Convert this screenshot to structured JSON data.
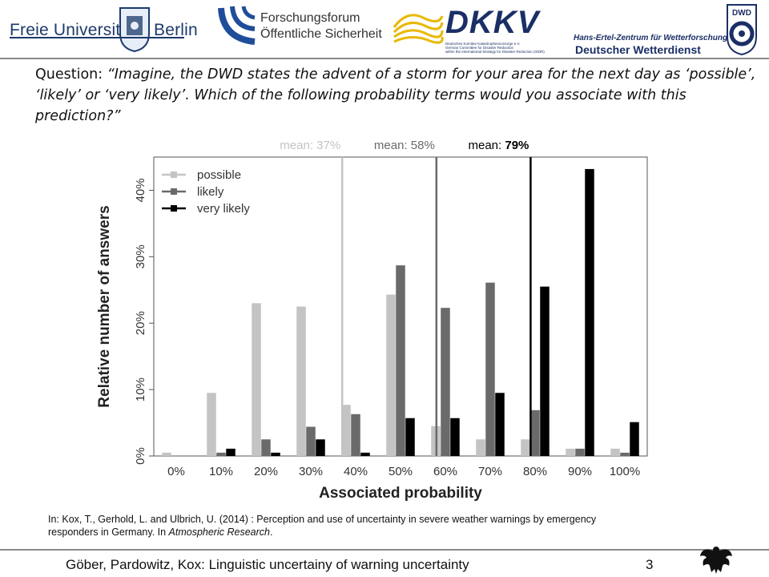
{
  "header": {
    "fu_left": "Freie Universität",
    "fu_right": "Berlin",
    "forschungsforum_line1": "Forschungsforum",
    "forschungsforum_line2": "Öffentliche Sicherheit",
    "dkkv_title": "DKKV",
    "dkkv_line1": "Deutsches Komitee Katastrophenvorsorge e.V.",
    "dkkv_line2": "German Committee for Disaster Reduction",
    "dkkv_line3": "within the International Strategy for Disaster Reduction (ISDR)",
    "dwd_badge": "DWD",
    "dwd_subtitle": "Hans-Ertel-Zentrum für Wetterforschung",
    "dwd_title": "Deutscher Wetterdienst"
  },
  "question": {
    "prefix": "Question: ",
    "text": "“Imagine, the DWD states the advent of a storm for your area for the next day as ‘possible’, ‘likely’ or ‘very likely’. Which of the following probability terms would you associate with this prediction?”"
  },
  "chart_data": {
    "type": "bar",
    "categories": [
      "0%",
      "10%",
      "20%",
      "30%",
      "40%",
      "50%",
      "60%",
      "70%",
      "80%",
      "90%",
      "100%"
    ],
    "series": [
      {
        "name": "possible",
        "color": "#c4c4c4",
        "values": [
          0.5,
          9.5,
          23.0,
          22.5,
          7.7,
          24.3,
          4.5,
          2.5,
          2.5,
          1.1,
          1.1
        ]
      },
      {
        "name": "likely",
        "color": "#6a6a6a",
        "values": [
          0.0,
          0.5,
          2.5,
          4.4,
          6.3,
          28.7,
          22.3,
          26.1,
          6.9,
          1.1,
          0.5
        ]
      },
      {
        "name": "very likely",
        "color": "#000000",
        "values": [
          0.0,
          1.1,
          0.5,
          2.5,
          0.5,
          5.7,
          5.7,
          9.5,
          25.5,
          43.2,
          5.1
        ]
      }
    ],
    "means": [
      {
        "label": "mean:",
        "value_label": "37%",
        "value": 37,
        "color": "#c4c4c4"
      },
      {
        "label": "mean:",
        "value_label": "58%",
        "value": 58,
        "color": "#6a6a6a"
      },
      {
        "label": "mean:",
        "value_label": "79%",
        "value": 79,
        "color": "#000000"
      }
    ],
    "xlabel": "Associated probability",
    "ylabel": "Relative number of answers",
    "ylim": [
      0,
      45
    ],
    "yticks": [
      0,
      10,
      20,
      30,
      40
    ],
    "ytick_labels": [
      "0%",
      "10%",
      "20%",
      "30%",
      "40%"
    ],
    "legend_position": "top-left"
  },
  "citation": {
    "line1": "In: Kox, T., Gerhold, L. and Ulbrich, U. (2014) : Perception and use of uncertainty in severe weather warnings by emergency",
    "line2_prefix": "responders in Germany.  In ",
    "journal": "Atmospheric Research",
    "line2_suffix": "."
  },
  "footer": {
    "text": "Göber, Pardowitz, Kox: Linguistic uncertainy of warning uncertainty",
    "page": "3"
  }
}
